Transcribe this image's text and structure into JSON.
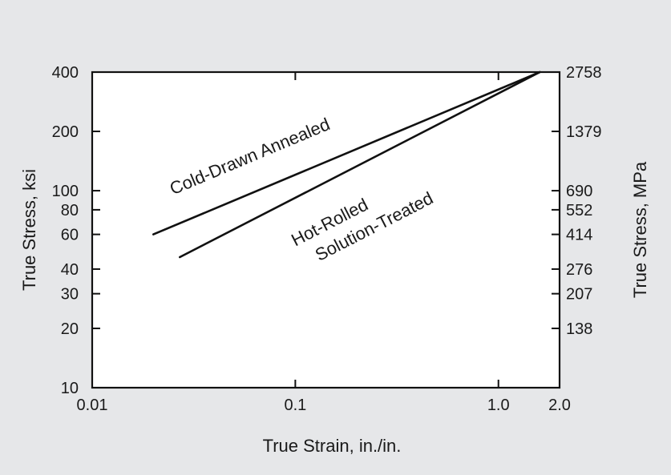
{
  "chart_data": {
    "type": "line",
    "xlabel": "True Strain, in./in.",
    "ylabel": "True Stress, ksi",
    "ylabel_right": "True Stress, MPa",
    "x_scale": "log",
    "y_scale": "log",
    "xlim": [
      0.01,
      2.0
    ],
    "ylim": [
      10,
      400
    ],
    "x_ticks": [
      {
        "value": 0.01,
        "label": "0.01"
      },
      {
        "value": 0.1,
        "label": "0.1"
      },
      {
        "value": 1.0,
        "label": "1.0"
      },
      {
        "value": 2.0,
        "label": "2.0"
      }
    ],
    "y_ticks_left": [
      {
        "value": 400,
        "label": "400"
      },
      {
        "value": 200,
        "label": "200"
      },
      {
        "value": 100,
        "label": "100"
      },
      {
        "value": 80,
        "label": "80"
      },
      {
        "value": 60,
        "label": "60"
      },
      {
        "value": 40,
        "label": "40"
      },
      {
        "value": 30,
        "label": "30"
      },
      {
        "value": 20,
        "label": "20"
      },
      {
        "value": 10,
        "label": "10"
      }
    ],
    "y_ticks_right": [
      {
        "value": 400,
        "label": "2758"
      },
      {
        "value": 200,
        "label": "1379"
      },
      {
        "value": 100,
        "label": "690"
      },
      {
        "value": 80,
        "label": "552"
      },
      {
        "value": 60,
        "label": "414"
      },
      {
        "value": 40,
        "label": "276"
      },
      {
        "value": 30,
        "label": "207"
      },
      {
        "value": 20,
        "label": "138"
      }
    ],
    "series": [
      {
        "name": "Cold-Drawn Annealed",
        "x": [
          0.02,
          1.6
        ],
        "y": [
          60,
          400
        ],
        "color": "#111111"
      },
      {
        "name": "Hot-Rolled Solution-Treated",
        "x": [
          0.027,
          1.6
        ],
        "y": [
          46,
          400
        ],
        "color": "#111111"
      }
    ],
    "annotations": [
      {
        "series_index": 0,
        "lines": [
          "Cold-Drawn Annealed"
        ],
        "x": 0.025,
        "y": 95
      },
      {
        "series_index": 1,
        "lines": [
          "Hot-Rolled",
          "Solution-Treated"
        ],
        "x": 0.1,
        "y": 52
      }
    ],
    "grid": false,
    "legend": "none"
  }
}
